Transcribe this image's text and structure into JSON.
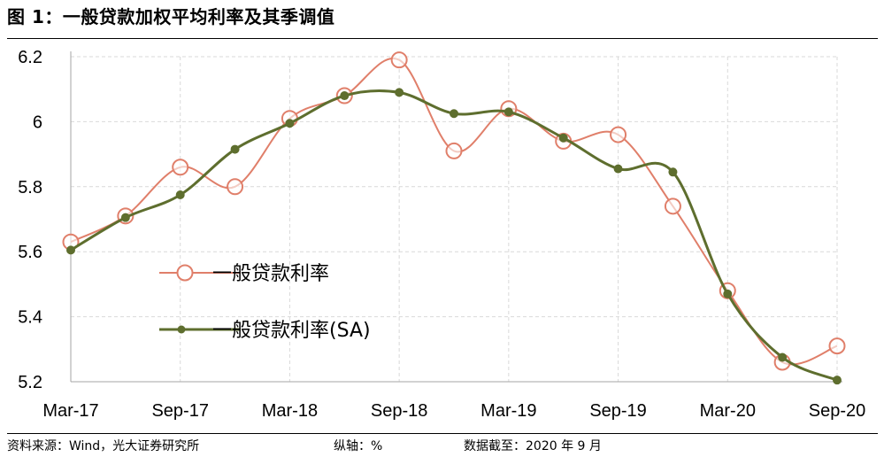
{
  "title": "图 1：一般贷款加权平均利率及其季调值",
  "footer": {
    "source": "资料来源：Wind，光大证券研究所",
    "axis_unit": "纵轴：%",
    "data_cutoff": "数据截至：2020 年 9 月"
  },
  "colors": {
    "series1": "#E07F6A",
    "series2": "#5E6E2E",
    "grid": "#D9D9D9"
  },
  "chart_data": {
    "type": "line",
    "title": "",
    "xlabel": "",
    "ylabel": "",
    "ylim": [
      5.2,
      6.2
    ],
    "yticks": [
      5.2,
      5.4,
      5.6,
      5.8,
      6,
      6.2
    ],
    "ytick_labels": [
      "5.2",
      "5.4",
      "5.6",
      "5.8",
      "6",
      "6.2"
    ],
    "x": [
      "Mar-17",
      "Jun-17",
      "Sep-17",
      "Dec-17",
      "Mar-18",
      "Jun-18",
      "Sep-18",
      "Dec-18",
      "Mar-19",
      "Jun-19",
      "Sep-19",
      "Dec-19",
      "Mar-20",
      "Jun-20",
      "Sep-20"
    ],
    "xtick_labels": [
      "Mar-17",
      "Sep-17",
      "Mar-18",
      "Sep-18",
      "Mar-19",
      "Sep-19",
      "Mar-20",
      "Sep-20"
    ],
    "grid": true,
    "legend_position": "center-left",
    "series": [
      {
        "name": "一般贷款利率",
        "marker": "hollow-circle",
        "smooth": true,
        "values": [
          5.63,
          5.71,
          5.86,
          5.8,
          6.01,
          6.08,
          6.19,
          5.91,
          6.04,
          5.94,
          5.96,
          5.74,
          5.48,
          5.26,
          5.31
        ]
      },
      {
        "name": "一般贷款利率(SA)",
        "marker": "filled-dot",
        "smooth": true,
        "values": [
          5.605,
          5.705,
          5.775,
          5.915,
          5.995,
          6.08,
          6.09,
          6.025,
          6.03,
          5.95,
          5.855,
          5.845,
          5.47,
          5.275,
          5.205
        ]
      }
    ]
  }
}
